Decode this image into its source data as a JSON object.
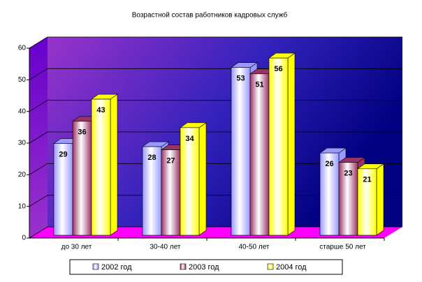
{
  "chart_data": {
    "type": "bar3d",
    "title": "Возрастной состав работников кадровых служб",
    "categories": [
      "до 30 лет",
      "30-40 лет",
      "40-50 лет",
      "старше 50 лет"
    ],
    "series": [
      {
        "name": "2002 год",
        "color": "#9999ff",
        "values": [
          29,
          28,
          53,
          26
        ]
      },
      {
        "name": "2003 год",
        "color": "#993366",
        "values": [
          36,
          27,
          51,
          23
        ]
      },
      {
        "name": "2004 год",
        "color": "#ffff00",
        "values": [
          43,
          34,
          56,
          21
        ]
      }
    ],
    "ylim": [
      0,
      60
    ],
    "yticks": [
      0,
      10,
      20,
      30,
      40,
      50,
      60
    ],
    "grid": true,
    "legend": "bottom"
  }
}
